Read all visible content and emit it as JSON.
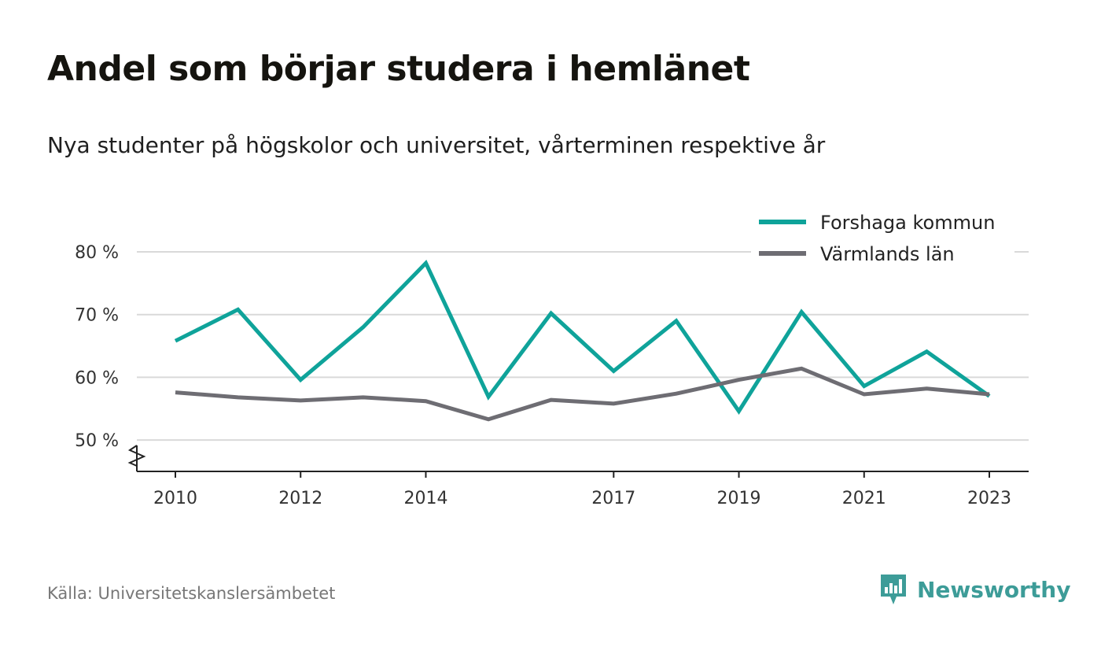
{
  "title": "Andel som börjar studera i hemlänet",
  "subtitle": "Nya studenter på högskolor och universitet, vårterminen respektive år",
  "source": "Källa: Universitetskanslersämbetet",
  "brand": {
    "name": "Newsworthy",
    "icon": "newsworthy-logo-icon",
    "color": "#3d9c98"
  },
  "chart_data": {
    "type": "line",
    "x": [
      2010,
      2011,
      2012,
      2013,
      2014,
      2015,
      2016,
      2017,
      2018,
      2019,
      2020,
      2021,
      2022,
      2023
    ],
    "x_tick_labels": [
      "2010",
      "2012",
      "2014",
      "2017",
      "2019",
      "2021",
      "2023"
    ],
    "y_ticks": [
      50,
      60,
      70,
      80
    ],
    "y_tick_labels": [
      "50 %",
      "60 %",
      "70 %",
      "80 %"
    ],
    "ylim": [
      45,
      80
    ],
    "y_axis_break": true,
    "grid": true,
    "legend_position": "top-right",
    "series": [
      {
        "name": "Forshaga kommun",
        "color": "#0fa39a",
        "values": [
          65.8,
          70.8,
          59.6,
          68.0,
          78.2,
          56.9,
          70.2,
          61.0,
          69.0,
          54.6,
          70.4,
          58.6,
          64.1,
          57.0
        ]
      },
      {
        "name": "Värmlands län",
        "color": "#6e6d73",
        "values": [
          57.6,
          56.8,
          56.3,
          56.8,
          56.2,
          53.3,
          56.4,
          55.8,
          57.4,
          59.6,
          61.4,
          57.3,
          58.2,
          57.3
        ]
      }
    ]
  }
}
